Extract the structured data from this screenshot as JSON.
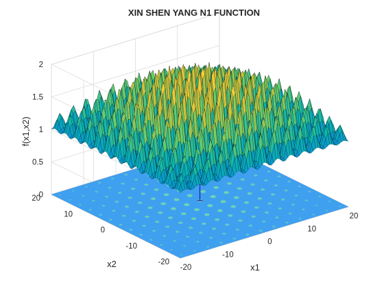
{
  "chart_data": {
    "type": "surface",
    "title": "XIN SHEN YANG N1 FUNCTION",
    "xlabel": "x1",
    "ylabel": "x2",
    "zlabel": "f(x1,x2)",
    "x_range": [
      -20,
      20
    ],
    "y_range": [
      -20,
      20
    ],
    "z_range": [
      0,
      2
    ],
    "x_ticks": [
      "-20",
      "-10",
      "0",
      "10",
      "20"
    ],
    "y_ticks": [
      "-20",
      "-10",
      "0",
      "10",
      "20"
    ],
    "z_ticks": [
      "0",
      "0.5",
      "1",
      "1.5",
      "2"
    ],
    "surface": {
      "baseline_value": 1,
      "peak_max": 2,
      "colormap": "parula",
      "edge_color": "#000000"
    },
    "contour_projection": {
      "plane_z": 0,
      "base_color": "#3fa0f0",
      "spot_color": "#73d6b0"
    },
    "global_minimum": {
      "x1": 0,
      "x2": 0,
      "f": 0,
      "marker_color": "#2323b4"
    },
    "grid": true,
    "legend": "none"
  }
}
